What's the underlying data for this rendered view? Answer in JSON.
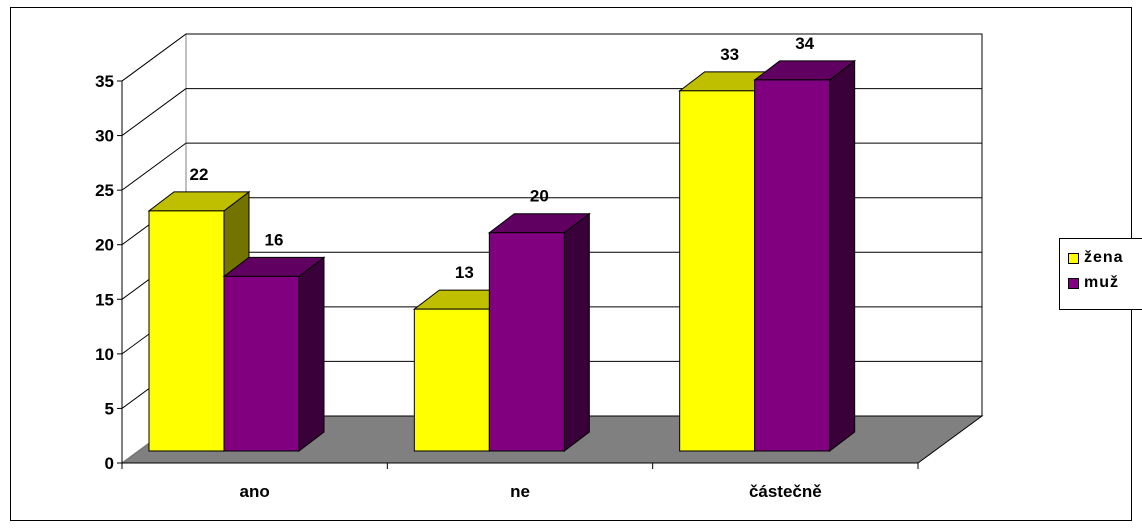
{
  "chart_data": {
    "type": "bar",
    "categories": [
      "ano",
      "ne",
      "částečně"
    ],
    "series": [
      {
        "name": "žena",
        "values": [
          22,
          13,
          33
        ],
        "color": "#FFFF00"
      },
      {
        "name": "muž",
        "values": [
          16,
          20,
          34
        ],
        "color": "#800080"
      }
    ],
    "ylim": [
      0,
      35
    ],
    "yticks": [
      "0",
      "5",
      "10",
      "15",
      "20",
      "25",
      "30",
      "35"
    ],
    "grid": true,
    "legend": "right",
    "style": "3d-column",
    "wall_color": "#808080",
    "axis_color": "#000000"
  }
}
